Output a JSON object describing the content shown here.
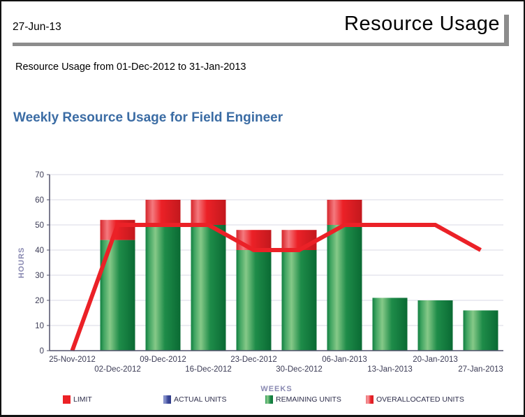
{
  "header": {
    "date": "27-Jun-13",
    "title": "Resource Usage"
  },
  "subtitle": "Resource Usage from 01-Dec-2012 to 31-Jan-2013",
  "chart": {
    "title": "Weekly Resource Usage for Field Engineer"
  },
  "chart_data": {
    "type": "combo-stacked-bar-line",
    "title": "Weekly Resource Usage for Field Engineer",
    "xlabel": "WEEKS",
    "ylabel": "HOURS",
    "ylim": [
      0,
      70
    ],
    "ytick_step": 10,
    "grid": true,
    "legend_position": "bottom",
    "categories": [
      "25-Nov-2012",
      "02-Dec-2012",
      "09-Dec-2012",
      "16-Dec-2012",
      "23-Dec-2012",
      "30-Dec-2012",
      "06-Jan-2013",
      "13-Jan-2013",
      "20-Jan-2013",
      "27-Jan-2013"
    ],
    "series": [
      {
        "name": "LIMIT",
        "kind": "line",
        "color": "#EB2127",
        "values": [
          0,
          50,
          50,
          50,
          40,
          40,
          50,
          50,
          50,
          40
        ]
      },
      {
        "name": "ACTUAL UNITS",
        "kind": "bar",
        "color": "#3A479A",
        "values": [
          0,
          0,
          0,
          0,
          0,
          0,
          0,
          0,
          0,
          0
        ]
      },
      {
        "name": "REMAINING UNITS",
        "kind": "bar",
        "color": "#1E8C49",
        "values": [
          0,
          44,
          50,
          50,
          40,
          40,
          50,
          21,
          20,
          16
        ]
      },
      {
        "name": "OVERALLOCATED UNITS",
        "kind": "bar",
        "color": "#EC2127",
        "values": [
          0,
          8,
          10,
          10,
          8,
          8,
          10,
          0,
          0,
          0
        ]
      }
    ],
    "legend": {
      "items": [
        {
          "label": "LIMIT",
          "swatch": "solid-red"
        },
        {
          "label": "ACTUAL UNITS",
          "swatch": "gradient-blue"
        },
        {
          "label": "REMAINING UNITS",
          "swatch": "gradient-green"
        },
        {
          "label": "OVERALLOCATED UNITS",
          "swatch": "gradient-red"
        }
      ]
    },
    "colors": {
      "axis_line": "#50506A",
      "gridline": "#DADAE4",
      "tick_text": "#3B3B55",
      "axis_title_text": "#8A8AB2",
      "limit_line": "#EB2127",
      "header_rule_gray": "#8C8C8C",
      "chart_title_blue": "#3B6CA4"
    }
  }
}
